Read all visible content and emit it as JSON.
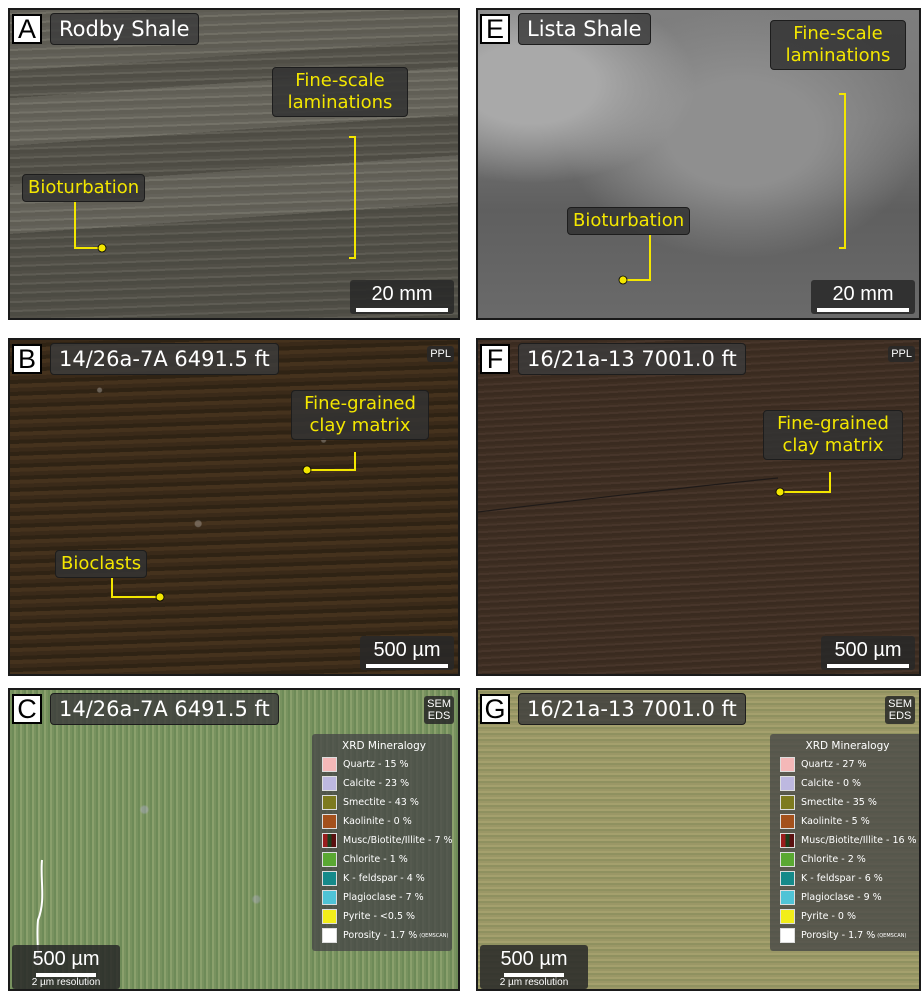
{
  "panels": {
    "A": {
      "letter": "A",
      "title": "Rodby Shale",
      "scale": "20 mm",
      "ann1": "Fine-scale\nlaminations",
      "ann2": "Bioturbation"
    },
    "E": {
      "letter": "E",
      "title": "Lista Shale",
      "scale": "20 mm",
      "ann1": "Fine-scale\nlaminations",
      "ann2": "Bioturbation"
    },
    "B": {
      "letter": "B",
      "title": "14/26a-7A 6491.5 ft",
      "tag": "PPL",
      "scale": "500 µm",
      "ann1": "Fine-grained\nclay matrix",
      "ann2": "Bioclasts"
    },
    "F": {
      "letter": "F",
      "title": "16/21a-13 7001.0 ft",
      "tag": "PPL",
      "scale": "500 µm",
      "ann1": "Fine-grained\nclay matrix"
    },
    "C": {
      "letter": "C",
      "title": "14/26a-7A 6491.5 ft",
      "tag": "SEM\nEDS",
      "scale": "500 µm",
      "resolution": "2 µm resolution",
      "legend_title": "XRD Mineralogy",
      "legend": [
        {
          "label": "Quartz - 15 %",
          "color": "#f4b8b8"
        },
        {
          "label": "Calcite - 23 %",
          "color": "#bdb8e0"
        },
        {
          "label": "Smectite - 43 %",
          "color": "#7d7a1f"
        },
        {
          "label": "Kaolinite - 0 %",
          "color": "#a4511c"
        },
        {
          "label": "Musc/Biotite/Illite - 7 %",
          "color": "split"
        },
        {
          "label": "Chlorite - 1 %",
          "color": "#5aa832"
        },
        {
          "label": "K - feldspar - 4 %",
          "color": "#168a8a"
        },
        {
          "label": "Plagioclase - 7 %",
          "color": "#4fc3d6"
        },
        {
          "label": "Pyrite - <0.5 %",
          "color": "#f2ee1a"
        },
        {
          "label": "Porosity - 1.7 %",
          "sub": "(QEMSCAN)",
          "color": "#ffffff"
        }
      ]
    },
    "G": {
      "letter": "G",
      "title": "16/21a-13 7001.0 ft",
      "tag": "SEM\nEDS",
      "scale": "500 µm",
      "resolution": "2 µm resolution",
      "legend_title": "XRD Mineralogy",
      "legend": [
        {
          "label": "Quartz - 27 %",
          "color": "#f4b8b8"
        },
        {
          "label": "Calcite - 0 %",
          "color": "#bdb8e0"
        },
        {
          "label": "Smectite - 35 %",
          "color": "#7d7a1f"
        },
        {
          "label": "Kaolinite - 5 %",
          "color": "#a4511c"
        },
        {
          "label": "Musc/Biotite/Illite - 16 %",
          "color": "split"
        },
        {
          "label": "Chlorite - 2 %",
          "color": "#5aa832"
        },
        {
          "label": "K - feldspar - 6 %",
          "color": "#168a8a"
        },
        {
          "label": "Plagioclase - 9 %",
          "color": "#4fc3d6"
        },
        {
          "label": "Pyrite - 0 %",
          "color": "#f2ee1a"
        },
        {
          "label": "Porosity - 1.7 %",
          "sub": "(QEMSCAN)",
          "color": "#ffffff"
        }
      ]
    }
  }
}
